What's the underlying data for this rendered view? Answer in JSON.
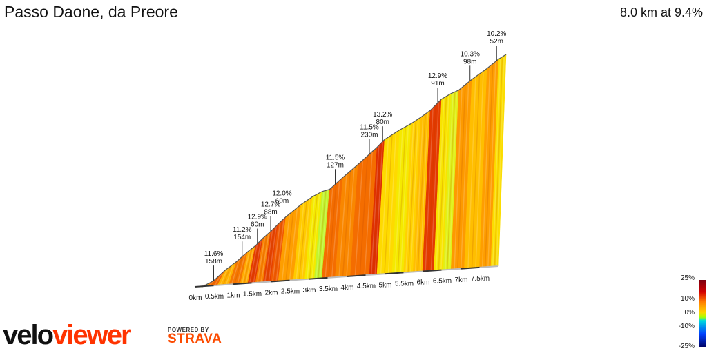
{
  "header": {
    "title": "Passo Daone, da Preore",
    "summary": "8.0 km at 9.4%"
  },
  "chart_data": {
    "type": "area",
    "title": "Passo Daone, da Preore",
    "xlabel": "",
    "ylabel": "",
    "x_unit": "km",
    "xlim": [
      0,
      8.0
    ],
    "x_ticks": [
      "0km",
      "0.5km",
      "1km",
      "1.5km",
      "2km",
      "2.5km",
      "3km",
      "3.5km",
      "4km",
      "4.5km",
      "5km",
      "5.5km",
      "6km",
      "6.5km",
      "7km",
      "7.5km"
    ],
    "climbs": [
      {
        "km": 0.3,
        "gradient": "11.6%",
        "length": "158m"
      },
      {
        "km": 1.05,
        "gradient": "11.2%",
        "length": "154m"
      },
      {
        "km": 1.45,
        "gradient": "12.9%",
        "length": "60m"
      },
      {
        "km": 1.8,
        "gradient": "12.7%",
        "length": "88m"
      },
      {
        "km": 2.1,
        "gradient": "12.0%",
        "length": "60m"
      },
      {
        "km": 3.5,
        "gradient": "11.5%",
        "length": "127m"
      },
      {
        "km": 4.4,
        "gradient": "11.5%",
        "length": "230m"
      },
      {
        "km": 4.75,
        "gradient": "13.2%",
        "length": "80m"
      },
      {
        "km": 6.2,
        "gradient": "12.9%",
        "length": "91m"
      },
      {
        "km": 7.05,
        "gradient": "10.3%",
        "length": "98m"
      },
      {
        "km": 7.75,
        "gradient": "10.2%",
        "length": "52m"
      }
    ],
    "segments": [
      {
        "from": 0.0,
        "to": 0.3,
        "gradient": 6.5
      },
      {
        "from": 0.3,
        "to": 0.6,
        "gradient": 11.6
      },
      {
        "from": 0.6,
        "to": 0.9,
        "gradient": 9.5
      },
      {
        "from": 0.9,
        "to": 1.2,
        "gradient": 11.2
      },
      {
        "from": 1.2,
        "to": 1.4,
        "gradient": 9.8
      },
      {
        "from": 1.4,
        "to": 1.6,
        "gradient": 12.9
      },
      {
        "from": 1.6,
        "to": 1.8,
        "gradient": 11.0
      },
      {
        "from": 1.8,
        "to": 2.0,
        "gradient": 12.7
      },
      {
        "from": 2.0,
        "to": 2.2,
        "gradient": 12.0
      },
      {
        "from": 2.2,
        "to": 2.6,
        "gradient": 10.2
      },
      {
        "from": 2.6,
        "to": 2.9,
        "gradient": 8.5
      },
      {
        "from": 2.9,
        "to": 3.15,
        "gradient": 6.5
      },
      {
        "from": 3.15,
        "to": 3.35,
        "gradient": 3.0
      },
      {
        "from": 3.35,
        "to": 3.7,
        "gradient": 11.5
      },
      {
        "from": 3.7,
        "to": 4.1,
        "gradient": 10.8
      },
      {
        "from": 4.1,
        "to": 4.6,
        "gradient": 11.5
      },
      {
        "from": 4.6,
        "to": 4.8,
        "gradient": 13.2
      },
      {
        "from": 4.8,
        "to": 5.2,
        "gradient": 7.8
      },
      {
        "from": 5.2,
        "to": 5.5,
        "gradient": 6.6
      },
      {
        "from": 5.5,
        "to": 5.75,
        "gradient": 8.2
      },
      {
        "from": 5.75,
        "to": 6.0,
        "gradient": 9.0
      },
      {
        "from": 6.0,
        "to": 6.3,
        "gradient": 12.9
      },
      {
        "from": 6.3,
        "to": 6.55,
        "gradient": 7.0
      },
      {
        "from": 6.55,
        "to": 6.75,
        "gradient": 5.2
      },
      {
        "from": 6.75,
        "to": 7.1,
        "gradient": 10.3
      },
      {
        "from": 7.1,
        "to": 7.5,
        "gradient": 9.0
      },
      {
        "from": 7.5,
        "to": 7.8,
        "gradient": 10.2
      },
      {
        "from": 7.8,
        "to": 8.0,
        "gradient": 7.5
      }
    ],
    "legend": {
      "labels": [
        "25%",
        "10%",
        "0%",
        "-10%",
        "-25%"
      ],
      "placement": "bottom-right"
    },
    "grid": false
  },
  "branding": {
    "logo_part1": "velo",
    "logo_part2": "viewer",
    "powered_by": "POWERED BY",
    "strava": "STRAVA"
  }
}
